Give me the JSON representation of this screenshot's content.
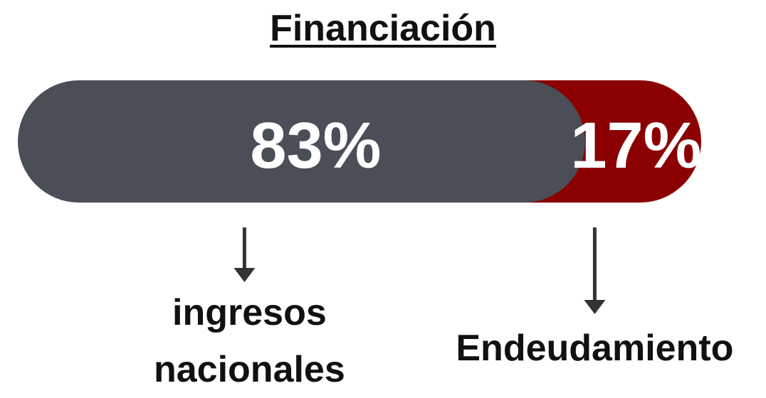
{
  "chart_data": {
    "type": "stacked_bar",
    "title": "Financiación",
    "series": [
      {
        "name": "ingresos nacionales",
        "color": "#4a4f57",
        "values": [
          83
        ],
        "value_labels": [
          "83%"
        ]
      },
      {
        "name": "Endeudamiento",
        "color": "#8b0000",
        "values": [
          17
        ],
        "value_labels": [
          "17%"
        ]
      }
    ]
  }
}
